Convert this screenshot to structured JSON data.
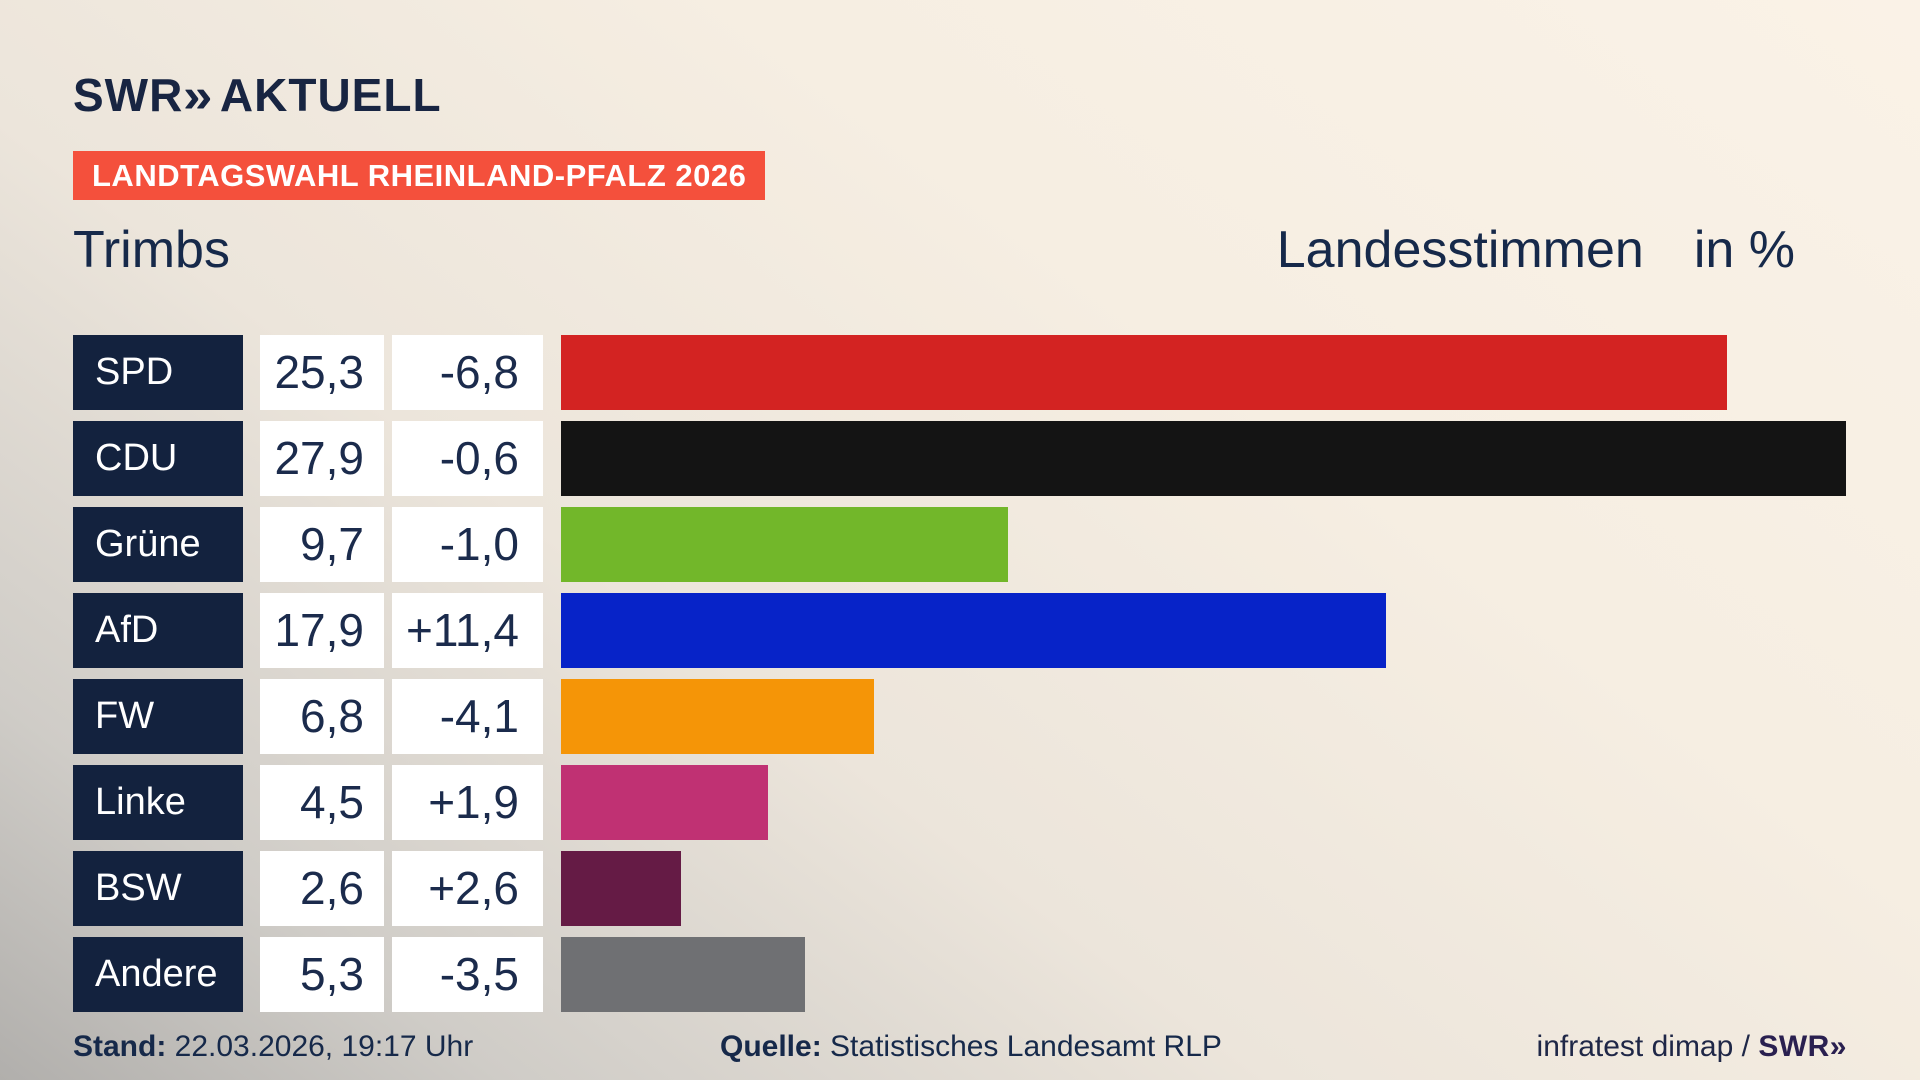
{
  "header": {
    "logo_brand": "SWR",
    "logo_chevrons": "»",
    "logo_suffix": "AKTUELL",
    "badge": "LANDTAGSWAHL RHEINLAND-PFALZ 2026",
    "title_left": "Trimbs",
    "title_right": "Landesstimmen",
    "title_unit": "in %"
  },
  "chart_data": {
    "type": "bar",
    "orientation": "horizontal",
    "title": "Landesstimmen in %",
    "subtitle": "Landtagswahl Rheinland-Pfalz 2026 – Trimbs",
    "categories": [
      "SPD",
      "CDU",
      "Grüne",
      "AfD",
      "FW",
      "Linke",
      "BSW",
      "Andere"
    ],
    "values": [
      25.3,
      27.9,
      9.7,
      17.9,
      6.8,
      4.5,
      2.6,
      5.3
    ],
    "value_labels": [
      "25,3",
      "27,9",
      "9,7",
      "17,9",
      "6,8",
      "4,5",
      "2,6",
      "5,3"
    ],
    "change_labels": [
      "-6,8",
      "-0,6",
      "-1,0",
      "+11,4",
      "-4,1",
      "+1,9",
      "+2,6",
      "-3,5"
    ],
    "bar_colors": [
      "#d32322",
      "#141414",
      "#72b72a",
      "#0723c8",
      "#f59507",
      "#c03173",
      "#651b45",
      "#6f7073"
    ],
    "label_bg": "#13223e",
    "xlim": [
      0,
      29.5
    ],
    "grid": false,
    "legend": "none"
  },
  "footer": {
    "stand_label": "Stand:",
    "stand_value": " 22.03.2026, 19:17 Uhr",
    "quelle_label": "Quelle:",
    "quelle_value": " Statistisches Landesamt RLP",
    "credit_text": "infratest dimap / ",
    "credit_logo": "SWR»"
  },
  "colors": {
    "accent_badge": "#f4503c",
    "navy_text": "#16294a",
    "label_cell_bg": "#13223e",
    "cell_bg": "#ffffff",
    "background_top": "#faf2e7",
    "background_bottom_left": "#b1afac"
  }
}
